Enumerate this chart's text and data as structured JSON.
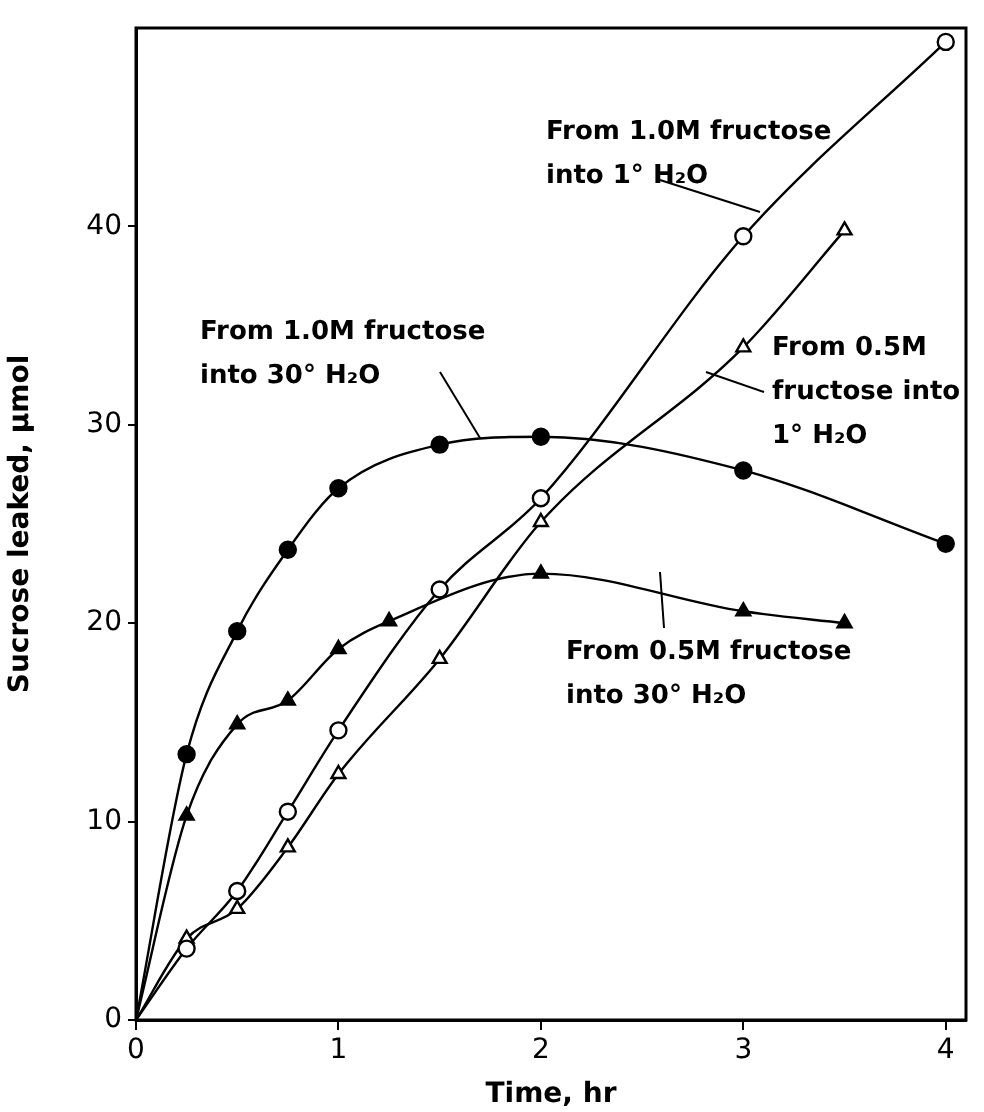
{
  "chart_data": {
    "type": "line",
    "xlabel": "Time, hr",
    "ylabel": "Sucrose leaked, µmol",
    "xlim": [
      0,
      4.1
    ],
    "xticks": [
      0,
      1,
      2,
      3,
      4
    ],
    "ylim": [
      0,
      50
    ],
    "yticks": [
      0,
      10,
      20,
      30,
      40
    ],
    "grid": false,
    "series": [
      {
        "name": "From 1.0M fructose\ninto 1° H₂O",
        "color": "#000000",
        "marker": "circle",
        "x": [
          0,
          0.25,
          0.5,
          0.75,
          1,
          1.5,
          2,
          3,
          4
        ],
        "values": [
          0,
          3.6,
          6.5,
          10.5,
          14.6,
          21.7,
          26.3,
          39.5,
          49.3
        ]
      },
      {
        "name": "From 0.5M\nfructose into\n1° H₂O",
        "color": "#000000",
        "marker": "triangle",
        "x": [
          0,
          0.25,
          0.5,
          0.75,
          1,
          1.5,
          2,
          3,
          3.5
        ],
        "values": [
          0,
          4.1,
          5.6,
          8.7,
          12.4,
          18.2,
          25.1,
          33.9,
          39.8
        ]
      },
      {
        "name": "From 1.0M fructose\ninto 30° H₂O",
        "color": "#000000",
        "marker": "circle",
        "x": [
          0,
          0.25,
          0.5,
          0.75,
          1,
          1.5,
          2,
          3,
          4
        ],
        "values": [
          0,
          13.4,
          19.6,
          23.7,
          26.8,
          29.0,
          29.4,
          27.7,
          24.0
        ]
      },
      {
        "name": "From 0.5M fructose\ninto 30° H₂O",
        "color": "#000000",
        "marker": "triangle",
        "x": [
          0,
          0.25,
          0.5,
          0.75,
          1,
          1.25,
          2,
          3,
          3.5
        ],
        "values": [
          0,
          10.3,
          14.9,
          16.1,
          18.7,
          20.1,
          22.5,
          20.6,
          20.0
        ]
      }
    ]
  }
}
